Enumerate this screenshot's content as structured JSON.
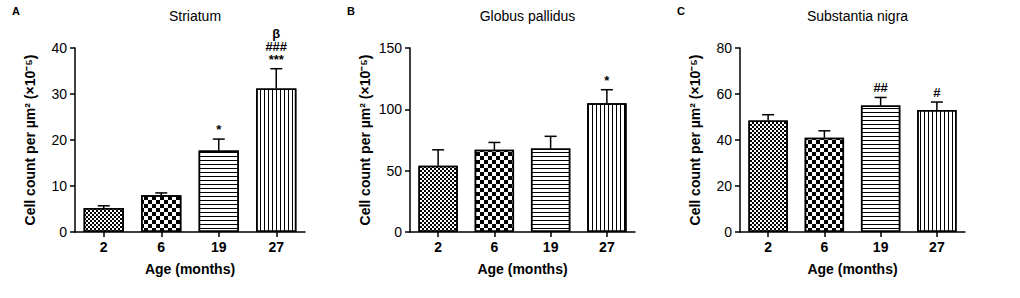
{
  "chart_data": [
    {
      "type": "bar",
      "panel": "A",
      "title": "Striatum",
      "x_label": "Age (months)",
      "y_label": "Cell count per µm² (×10⁻⁵)",
      "categories": [
        "2",
        "6",
        "19",
        "27"
      ],
      "values": [
        5.2,
        8.0,
        17.7,
        31.2
      ],
      "errors": [
        0.5,
        0.5,
        2.5,
        4.3
      ],
      "annotations": [
        null,
        null,
        [
          "*"
        ],
        [
          "β",
          "###",
          "***"
        ]
      ],
      "color": "#000000",
      "ylim": [
        0,
        40
      ],
      "yticks": [
        0,
        10,
        20,
        30,
        40
      ],
      "grid": false
    },
    {
      "type": "bar",
      "panel": "B",
      "title": "Globus pallidus",
      "x_label": "Age (months)",
      "y_label": "Cell count per µm² (×10⁻⁵)",
      "categories": [
        "2",
        "6",
        "19",
        "27"
      ],
      "values": [
        54,
        67,
        68,
        105
      ],
      "errors": [
        13,
        6,
        10,
        11
      ],
      "annotations": [
        null,
        null,
        null,
        [
          "*"
        ]
      ],
      "color": "#000000",
      "ylim": [
        0,
        150
      ],
      "yticks": [
        0,
        50,
        100,
        150
      ],
      "grid": false
    },
    {
      "type": "bar",
      "panel": "C",
      "title": "Substantia nigra",
      "x_label": "Age (months)",
      "y_label": "Cell count per µm² (×10⁻⁵)",
      "categories": [
        "2",
        "6",
        "19",
        "27"
      ],
      "values": [
        48.5,
        41,
        55,
        53
      ],
      "errors": [
        2.5,
        3,
        3.5,
        3.5
      ],
      "annotations": [
        null,
        null,
        [
          "##"
        ],
        [
          "#"
        ]
      ],
      "color": "#000000",
      "ylim": [
        0,
        80
      ],
      "yticks": [
        0,
        20,
        40,
        60,
        80
      ],
      "grid": false
    }
  ]
}
